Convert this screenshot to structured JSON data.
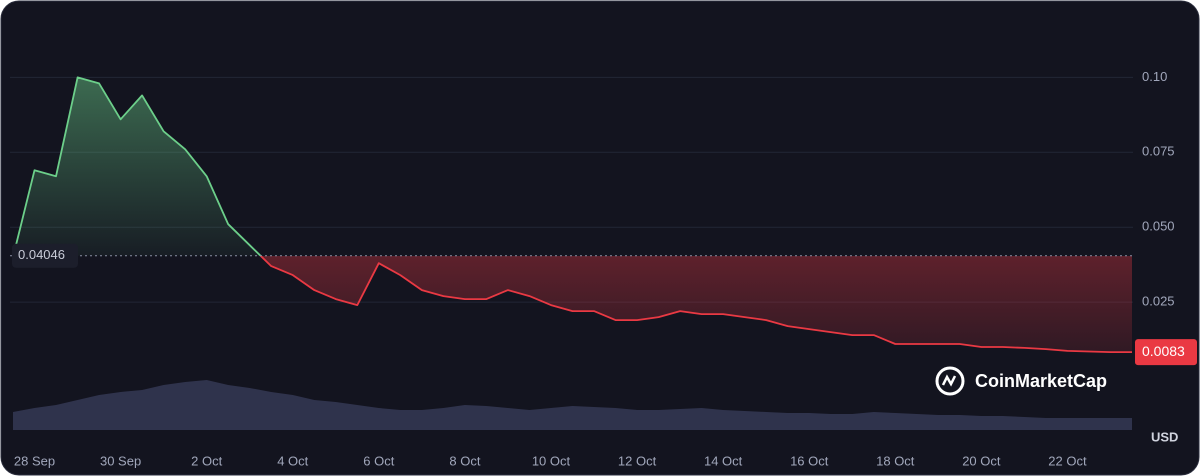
{
  "chart_data": {
    "type": "line",
    "categories": [
      null,
      "28 Sep",
      null,
      null,
      null,
      "30 Sep",
      null,
      null,
      null,
      "2 Oct",
      null,
      null,
      null,
      "4 Oct",
      null,
      null,
      null,
      "6 Oct",
      null,
      null,
      null,
      "8 Oct",
      null,
      null,
      null,
      "10 Oct",
      null,
      null,
      null,
      "12 Oct",
      null,
      null,
      null,
      "14 Oct",
      null,
      null,
      null,
      "16 Oct",
      null,
      null,
      null,
      "18 Oct",
      null,
      null,
      null,
      "20 Oct",
      null,
      null,
      null,
      "22 Oct",
      null,
      null,
      null
    ],
    "series": [
      {
        "color_up": "#6ccf8a",
        "color_down": "#ea3943",
        "values": [
          0.04,
          0.069,
          0.067,
          0.1,
          0.098,
          0.086,
          0.094,
          0.082,
          0.076,
          0.067,
          0.051,
          0.044,
          0.037,
          0.034,
          0.029,
          0.026,
          0.024,
          0.038,
          0.034,
          0.029,
          0.027,
          0.026,
          0.026,
          0.029,
          0.027,
          0.024,
          0.022,
          0.022,
          0.019,
          0.019,
          0.02,
          0.022,
          0.021,
          0.021,
          0.02,
          0.019,
          0.017,
          0.016,
          0.015,
          0.014,
          0.014,
          0.011,
          0.011,
          0.011,
          0.011,
          0.01,
          0.01,
          0.0097,
          0.0093,
          0.0087,
          0.0085,
          0.0083,
          0.0083
        ]
      }
    ],
    "volume": {
      "color": "#3a3e5c",
      "values": [
        18,
        22,
        25,
        30,
        35,
        38,
        40,
        45,
        48,
        50,
        45,
        42,
        38,
        35,
        30,
        28,
        25,
        22,
        20,
        20,
        22,
        25,
        24,
        22,
        20,
        22,
        24,
        23,
        22,
        20,
        20,
        21,
        22,
        20,
        19,
        18,
        17,
        17,
        16,
        16,
        18,
        17,
        16,
        15,
        15,
        14,
        14,
        13,
        12,
        12,
        12,
        12,
        12
      ]
    },
    "baseline": {
      "value": 0.04046,
      "label": "0.04046"
    },
    "last_price": {
      "value": 0.0083,
      "label": "0.0083"
    },
    "ylim": [
      0,
      0.125
    ],
    "yticks": [
      0.025,
      {
        "value": 0.05,
        "label": "0.050"
      },
      0.075,
      {
        "value": 0.1,
        "label": "0.10"
      }
    ],
    "currency": "USD",
    "watermark": "CoinMarketCap",
    "grid": true
  }
}
